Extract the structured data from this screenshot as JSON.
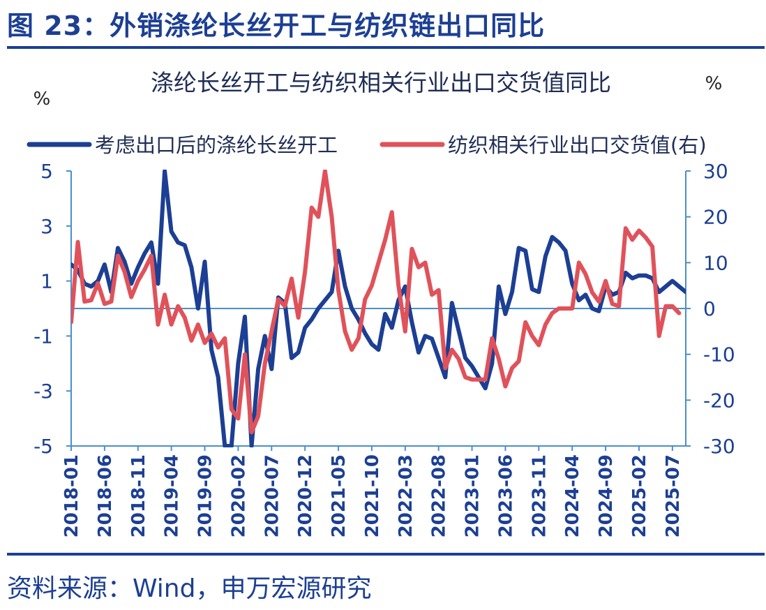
{
  "figure": {
    "title": "图 23：外销涤纶长丝开工与纺织链出口同比",
    "source": "资料来源：Wind，申万宏源研究"
  },
  "chart_data": {
    "type": "line",
    "title": "涤纶长丝开工与纺织相关行业出口交货值同比",
    "ylabel_left": "%",
    "ylabel_right": "%",
    "ylim_left": [
      -5,
      5
    ],
    "ylim_right": [
      -30,
      30
    ],
    "yticks_left": [
      "5",
      "3",
      "1",
      "-1",
      "-3",
      "-5"
    ],
    "yticks_right": [
      "30",
      "20",
      "10",
      "0",
      "-10",
      "-20",
      "-30"
    ],
    "xticks": [
      "2018-01",
      "2018-06",
      "2018-11",
      "2019-04",
      "2019-09",
      "2020-02",
      "2020-07",
      "2020-12",
      "2021-05",
      "2021-10",
      "2022-03",
      "2022-08",
      "2023-01",
      "2023-06",
      "2023-11",
      "2024-04",
      "2024-09",
      "2025-02",
      "2025-07"
    ],
    "legend_position": "top",
    "x_start": "2018-01",
    "series": [
      {
        "name": "考虑出口后的涤纶长丝开工",
        "axis": "left",
        "color": "#1c3f94",
        "values": [
          1.6,
          1.4,
          0.9,
          0.8,
          1.0,
          1.6,
          0.6,
          2.2,
          1.7,
          0.9,
          1.5,
          2.0,
          2.4,
          0.9,
          5.0,
          2.8,
          2.4,
          2.3,
          1.5,
          0.0,
          1.7,
          -1.5,
          -2.5,
          -5.0,
          -5.0,
          -2.0,
          -0.3,
          -5.0,
          -2.2,
          -1.0,
          -2.2,
          0.4,
          0.2,
          -1.8,
          -1.6,
          -0.7,
          -0.4,
          0.0,
          0.3,
          0.6,
          2.1,
          0.8,
          0.0,
          -0.4,
          -0.9,
          -1.3,
          -1.5,
          -0.2,
          -0.7,
          0.3,
          0.8,
          -0.5,
          -1.6,
          -1.0,
          -1.1,
          -1.8,
          -2.5,
          0.2,
          -0.8,
          -1.8,
          -2.1,
          -2.5,
          -2.9,
          -2.0,
          0.8,
          -0.2,
          0.6,
          2.2,
          2.1,
          0.7,
          0.6,
          1.9,
          2.6,
          2.4,
          2.1,
          0.9,
          0.3,
          0.5,
          0.0,
          -0.1,
          0.8,
          0.5,
          0.6,
          1.3,
          1.1,
          1.2,
          1.2,
          1.1,
          0.6,
          0.8,
          1.0,
          0.8,
          0.6
        ]
      },
      {
        "name": "纺织相关行业出口交货值(右)",
        "axis": "right",
        "color": "#e0525a",
        "values": [
          -3.0,
          14.5,
          1.5,
          1.8,
          5.5,
          1.0,
          1.5,
          11.5,
          8.0,
          2.5,
          6.0,
          8.5,
          11.5,
          -3.5,
          3.0,
          -3.5,
          0.5,
          -2.0,
          -7.0,
          -3.5,
          -7.5,
          -5.5,
          -8.5,
          -6.5,
          -22.0,
          -24.0,
          -10.0,
          -27.0,
          -23.5,
          -12.0,
          -5.0,
          2.0,
          0.5,
          6.5,
          -2.0,
          8.0,
          22.0,
          20.0,
          30.0,
          20.0,
          4.0,
          -5.0,
          -9.0,
          -6.5,
          2.0,
          5.0,
          10.0,
          15.0,
          21.0,
          5.0,
          -5.0,
          13.0,
          9.0,
          10.0,
          3.0,
          4.0,
          -13.0,
          -9.0,
          -11.0,
          -15.0,
          -15.5,
          -15.5,
          -15.5,
          -6.5,
          -11.0,
          -17.0,
          -13.0,
          -11.5,
          -3.0,
          -6.0,
          -8.0,
          -3.5,
          -1.0,
          0.0,
          0.0,
          0.0,
          10.0,
          7.5,
          3.5,
          1.5,
          6.0,
          1.0,
          0.5,
          17.5,
          15.0,
          17.0,
          15.5,
          13.5,
          -6.0,
          0.5,
          0.5,
          -1.0
        ]
      }
    ]
  }
}
